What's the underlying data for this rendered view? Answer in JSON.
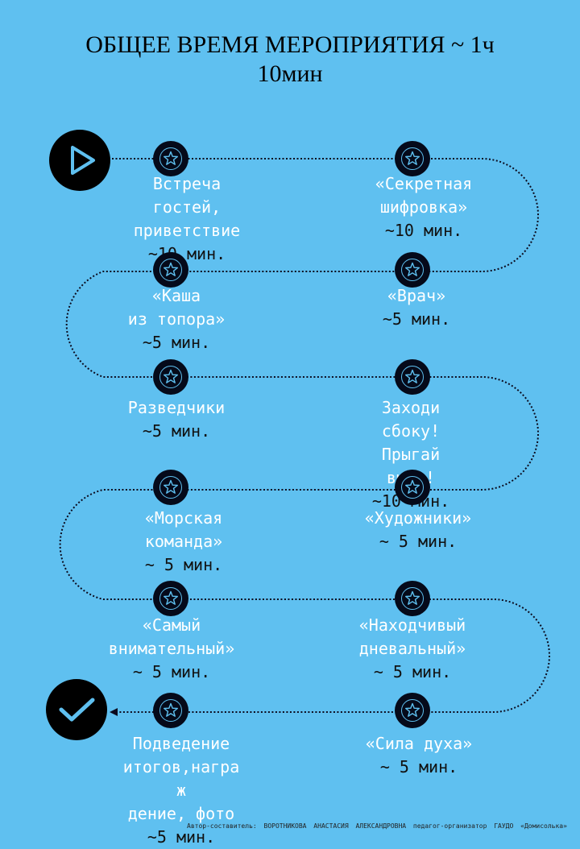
{
  "title": {
    "line1": "ОБЩЕЕ ВРЕМЯ МЕРОПРИЯТИЯ ~ 1ч",
    "line2": "10мин"
  },
  "icons": {
    "start": "play-icon",
    "finish": "checkmark-icon",
    "step": "star-icon"
  },
  "colors": {
    "background": "#5fc0f0",
    "node": "#050a1a",
    "label": "#ffffff",
    "duration": "#111111"
  },
  "steps": [
    {
      "title": "Встреча\nгостей,\nприветствие",
      "duration": "~10 мин."
    },
    {
      "title": "«Секретная\nшифровка»",
      "duration": "~10 мин."
    },
    {
      "title": "«Каша\nиз топора»",
      "duration": "~5 мин."
    },
    {
      "title": "«Врач»",
      "duration": "~5 мин."
    },
    {
      "title": "Разведчики",
      "duration": "~5 мин."
    },
    {
      "title": "Заходи\nсбоку!\nПрыгай\nвыше!",
      "duration": "~10 мин."
    },
    {
      "title": "«Морская\nкоманда»",
      "duration": "~ 5 мин."
    },
    {
      "title": "«Художники»",
      "duration": "~ 5 мин."
    },
    {
      "title": "«Самый\nвнимательный»",
      "duration": "~ 5 мин."
    },
    {
      "title": "«Находчивый\nдневальный»",
      "duration": "~ 5 мин."
    },
    {
      "title": "Подведение\nитогов,награ\nж\nдение, фото",
      "duration": "~5 мин."
    },
    {
      "title": "«Сила духа»",
      "duration": "~ 5 мин."
    }
  ],
  "footer": "Автор-составитель: ВОРОТНИКОВА АНАСТАСИЯ АЛЕКСАНДРОВНА педагог-организатор ГАУДО «Домисолька»"
}
